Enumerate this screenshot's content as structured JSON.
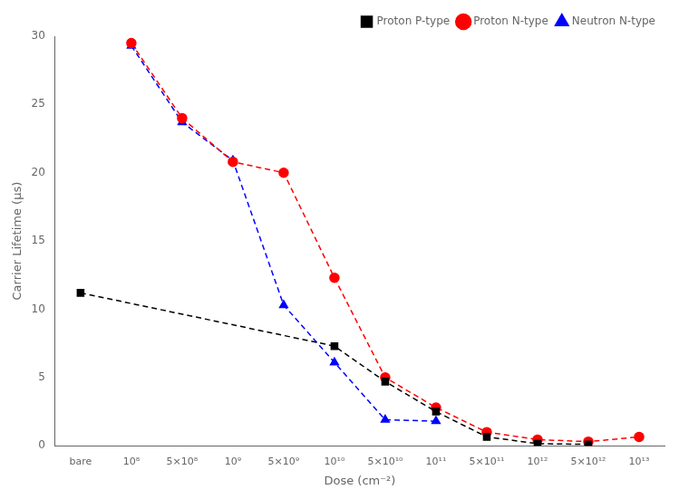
{
  "chart_data": {
    "type": "line",
    "xlabel": "Dose (cm⁻²)",
    "ylabel": "Carrier Lifetime (μs)",
    "categories": [
      "bare",
      "10⁸",
      "5×10⁸",
      "10⁹",
      "5×10⁹",
      "10¹⁰",
      "5×10¹⁰",
      "10¹¹",
      "5×10¹¹",
      "10¹²",
      "5×10¹²",
      "10¹³"
    ],
    "series": [
      {
        "name": "Proton P-type",
        "color": "#000000",
        "marker": "square",
        "line_style": "dashed",
        "x": [
          "bare",
          "10¹⁰",
          "5×10¹⁰",
          "10¹¹",
          "5×10¹¹",
          "10¹²",
          "5×10¹²"
        ],
        "values": [
          11.2,
          7.3,
          4.7,
          2.5,
          0.65,
          0.15,
          0.1
        ]
      },
      {
        "name": "Proton N-type",
        "color": "#ff0000",
        "marker": "circle",
        "line_style": "dashed",
        "x": [
          "10⁸",
          "5×10⁸",
          "10⁹",
          "5×10⁹",
          "10¹⁰",
          "5×10¹⁰",
          "10¹¹",
          "5×10¹¹",
          "10¹²",
          "5×10¹²",
          "10¹³"
        ],
        "values": [
          29.5,
          24.0,
          20.8,
          20.0,
          12.3,
          5.0,
          2.8,
          1.0,
          0.45,
          0.3,
          0.65
        ]
      },
      {
        "name": "Neutron N-type",
        "color": "#0000ff",
        "marker": "triangle",
        "line_style": "dashed",
        "x": [
          "10⁸",
          "5×10⁸",
          "10⁹",
          "5×10⁹",
          "10¹⁰",
          "5×10¹⁰",
          "10¹¹"
        ],
        "values": [
          29.3,
          23.7,
          20.9,
          10.3,
          6.1,
          1.9,
          1.8
        ]
      }
    ],
    "ylim": [
      0,
      30
    ],
    "yticks": [
      0,
      5,
      10,
      15,
      20,
      25,
      30
    ],
    "grid": false,
    "legend": "upper right"
  }
}
